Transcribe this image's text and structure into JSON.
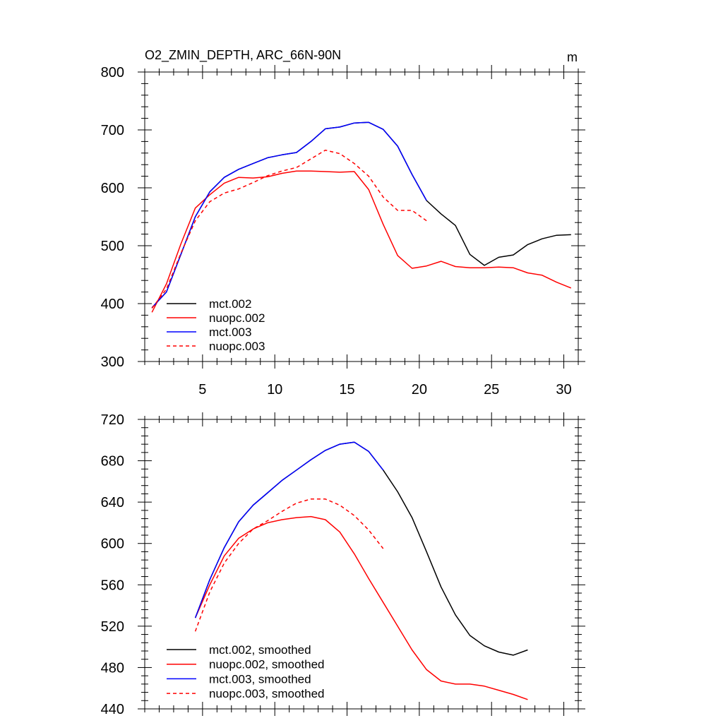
{
  "chart_data": [
    {
      "type": "line",
      "title": "O2_ZMIN_DEPTH, ARC_66N-90N",
      "units": "m",
      "xlabel": "",
      "ylabel": "",
      "xlim": [
        1,
        31
      ],
      "ylim": [
        300,
        800
      ],
      "xticks": [
        5,
        10,
        15,
        20,
        25,
        30
      ],
      "yticks": [
        300,
        400,
        500,
        600,
        700,
        800
      ],
      "legend_position": "bottom-left",
      "series": [
        {
          "name": "mct.002",
          "color": "#000000",
          "dash": "solid",
          "x": [
            1.5,
            2.5,
            3.5,
            4.5,
            5.5,
            6.5,
            7.5,
            8.5,
            9.5,
            10.5,
            11.5,
            12.5,
            13.5,
            14.5,
            15.5,
            16.5,
            17.5,
            18.5,
            19.5,
            20.5,
            21.5,
            22.5,
            23.5,
            24.5,
            25.5,
            26.5,
            27.5,
            28.5,
            29.5,
            30.5
          ],
          "values": [
            393,
            420,
            485,
            550,
            593,
            618,
            632,
            642,
            652,
            657,
            661,
            680,
            702,
            705,
            712,
            713,
            701,
            672,
            623,
            578,
            555,
            535,
            485,
            466,
            480,
            484,
            502,
            512,
            518,
            519
          ]
        },
        {
          "name": "nuopc.002",
          "color": "#ff0000",
          "dash": "solid",
          "x": [
            1.5,
            2.5,
            3.5,
            4.5,
            5.5,
            6.5,
            7.5,
            8.5,
            9.5,
            10.5,
            11.5,
            12.5,
            13.5,
            14.5,
            15.5,
            16.5,
            17.5,
            18.5,
            19.5,
            20.5,
            21.5,
            22.5,
            23.5,
            24.5,
            25.5,
            26.5,
            27.5,
            28.5,
            29.5,
            30.5
          ],
          "values": [
            385,
            434,
            503,
            565,
            588,
            608,
            618,
            617,
            619,
            625,
            629,
            629,
            628,
            627,
            628,
            597,
            537,
            483,
            461,
            465,
            473,
            464,
            462,
            462,
            463,
            462,
            453,
            449,
            437,
            427
          ]
        },
        {
          "name": "mct.003",
          "color": "#0000ff",
          "dash": "solid",
          "x": [
            1.5,
            2.5,
            3.5,
            4.5,
            5.5,
            6.5,
            7.5,
            8.5,
            9.5,
            10.5,
            11.5,
            12.5,
            13.5,
            14.5,
            15.5,
            16.5,
            17.5,
            18.5,
            19.5,
            20.5
          ],
          "values": [
            393,
            420,
            485,
            550,
            593,
            618,
            632,
            642,
            652,
            657,
            661,
            680,
            702,
            705,
            712,
            713,
            701,
            672,
            623,
            578
          ]
        },
        {
          "name": "nuopc.003",
          "color": "#ff0000",
          "dash": "dashed",
          "x": [
            1.5,
            2.5,
            3.5,
            4.5,
            5.5,
            6.5,
            7.5,
            8.5,
            9.5,
            10.5,
            11.5,
            12.5,
            13.5,
            14.5,
            15.5,
            16.5,
            17.5,
            18.5,
            19.5,
            20.5
          ],
          "values": [
            392,
            425,
            487,
            543,
            576,
            591,
            598,
            609,
            621,
            629,
            635,
            650,
            665,
            659,
            642,
            620,
            584,
            561,
            561,
            543
          ]
        }
      ]
    },
    {
      "type": "line",
      "title": "",
      "xlabel": "",
      "ylabel": "",
      "xlim": [
        1,
        31
      ],
      "ylim": [
        440,
        720
      ],
      "xticks": [
        5,
        10,
        15,
        20,
        25,
        30
      ],
      "yticks": [
        440,
        480,
        520,
        560,
        600,
        640,
        680,
        720
      ],
      "legend_position": "bottom-left",
      "series": [
        {
          "name": "mct.002, smoothed",
          "color": "#000000",
          "dash": "solid",
          "x": [
            4.5,
            5.5,
            6.5,
            7.5,
            8.5,
            9.5,
            10.5,
            11.5,
            12.5,
            13.5,
            14.5,
            15.5,
            16.5,
            17.5,
            18.5,
            19.5,
            20.5,
            21.5,
            22.5,
            23.5,
            24.5,
            25.5,
            26.5,
            27.5
          ],
          "values": [
            528,
            565,
            596,
            621,
            637,
            649,
            661,
            671,
            681,
            690,
            696,
            698,
            689,
            671,
            650,
            625,
            592,
            558,
            531,
            511,
            501,
            495,
            492,
            497
          ]
        },
        {
          "name": "nuopc.002, smoothed",
          "color": "#ff0000",
          "dash": "solid",
          "x": [
            4.5,
            5.5,
            6.5,
            7.5,
            8.5,
            9.5,
            10.5,
            11.5,
            12.5,
            13.5,
            14.5,
            15.5,
            16.5,
            17.5,
            18.5,
            19.5,
            20.5,
            21.5,
            22.5,
            23.5,
            24.5,
            25.5,
            26.5,
            27.5
          ],
          "values": [
            528,
            560,
            588,
            605,
            614,
            620,
            623,
            625,
            626,
            623,
            611,
            590,
            566,
            543,
            520,
            497,
            478,
            467,
            464,
            464,
            462,
            458,
            454,
            449
          ]
        },
        {
          "name": "mct.003, smoothed",
          "color": "#0000ff",
          "dash": "solid",
          "x": [
            4.5,
            5.5,
            6.5,
            7.5,
            8.5,
            9.5,
            10.5,
            11.5,
            12.5,
            13.5,
            14.5,
            15.5,
            16.5,
            17.5
          ],
          "values": [
            528,
            565,
            596,
            621,
            637,
            649,
            661,
            671,
            681,
            690,
            696,
            698,
            689,
            671
          ]
        },
        {
          "name": "nuopc.003, smoothed",
          "color": "#ff0000",
          "dash": "dashed",
          "x": [
            4.5,
            5.5,
            6.5,
            7.5,
            8.5,
            9.5,
            10.5,
            11.5,
            12.5,
            13.5,
            14.5,
            15.5,
            16.5,
            17.5
          ],
          "values": [
            515,
            553,
            581,
            600,
            614,
            622,
            631,
            639,
            643,
            643,
            637,
            627,
            613,
            595
          ]
        }
      ]
    }
  ]
}
